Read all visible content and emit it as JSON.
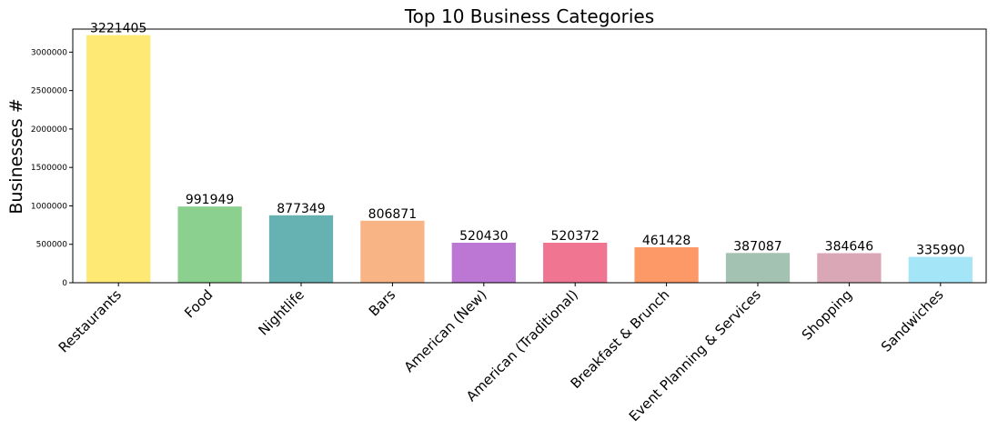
{
  "chart_data": {
    "type": "bar",
    "title": "Top 10 Business Categories",
    "xlabel": "",
    "ylabel": "Businesses #",
    "categories": [
      "Restaurants",
      "Food",
      "Nightlife",
      "Bars",
      "American (New)",
      "American (Traditional)",
      "Breakfast & Brunch",
      "Event Planning & Services",
      "Shopping",
      "Sandwiches"
    ],
    "values": [
      3221405,
      991949,
      877349,
      806871,
      520430,
      520372,
      461428,
      387087,
      384646,
      335990
    ],
    "value_labels": [
      "3221405",
      "991949",
      "877349",
      "806871",
      "520430",
      "520372",
      "461428",
      "387087",
      "384646",
      "335990"
    ],
    "colors": [
      "#ffe975",
      "#8bd08e",
      "#66b2b2",
      "#f8b484",
      "#bc77d4",
      "#ef7591",
      "#fd9966",
      "#a3c2b2",
      "#d9a7b5",
      "#a4e5f7"
    ],
    "ylim": [
      0,
      3300000
    ],
    "yticks": [
      0,
      500000,
      1000000,
      1500000,
      2000000,
      2500000,
      3000000
    ],
    "ytick_labels": [
      "0",
      "500000",
      "1000000",
      "1500000",
      "2000000",
      "2500000",
      "3000000"
    ],
    "x_tick_rotation_deg": -45,
    "grid": false,
    "legend": "none"
  }
}
